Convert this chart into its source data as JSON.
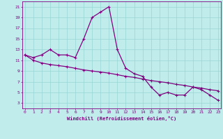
{
  "xlabel": "Windchill (Refroidissement éolien,°C)",
  "x_values": [
    0,
    1,
    2,
    3,
    4,
    5,
    6,
    7,
    8,
    9,
    10,
    11,
    12,
    13,
    14,
    15,
    16,
    17,
    18,
    19,
    20,
    21,
    22,
    23
  ],
  "line1_y": [
    12.0,
    11.5,
    12.0,
    13.0,
    12.0,
    12.0,
    11.5,
    15.0,
    19.0,
    20.0,
    21.0,
    13.0,
    9.5,
    8.5,
    8.0,
    6.0,
    4.5,
    5.0,
    4.5,
    4.5,
    6.0,
    5.5,
    4.5,
    3.5
  ],
  "line2_y": [
    12.0,
    11.0,
    10.5,
    10.2,
    10.0,
    9.8,
    9.5,
    9.2,
    9.0,
    8.8,
    8.6,
    8.3,
    8.0,
    7.8,
    7.5,
    7.2,
    7.0,
    6.8,
    6.5,
    6.3,
    6.0,
    5.8,
    5.5,
    5.3
  ],
  "line_color": "#800080",
  "bg_color": "#c0ecec",
  "grid_color": "#98d4d4",
  "tick_color": "#800080",
  "label_color": "#800080",
  "ylim": [
    2,
    22
  ],
  "yticks": [
    3,
    5,
    7,
    9,
    11,
    13,
    15,
    17,
    19,
    21
  ],
  "xticks": [
    0,
    1,
    2,
    3,
    4,
    5,
    6,
    7,
    8,
    9,
    10,
    11,
    12,
    13,
    14,
    15,
    16,
    17,
    18,
    19,
    20,
    21,
    22,
    23
  ],
  "xlim": [
    -0.3,
    23.3
  ]
}
